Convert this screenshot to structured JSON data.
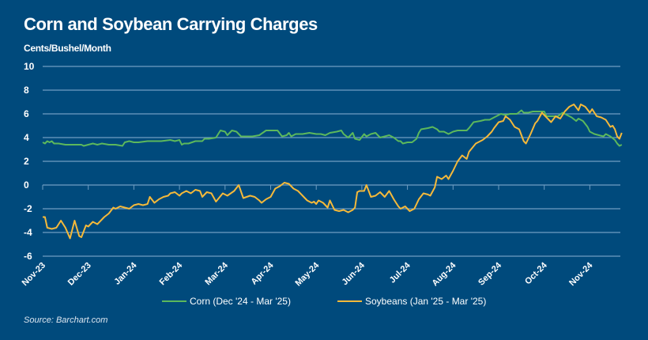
{
  "title": "Corn and Soybean Carrying Charges",
  "source": "Source: Barchart.com",
  "chart_data": {
    "type": "line",
    "title": "Corn and Soybean Carrying Charges",
    "ylabel": "Cents/Bushel/Month",
    "xlabel": "",
    "ylim": [
      -6,
      10
    ],
    "yticks": [
      10,
      8,
      6,
      4,
      2,
      0,
      -2,
      -4,
      -6
    ],
    "x_unit": "months since Nov-23",
    "xlim": [
      0,
      12.7
    ],
    "xtick_labels": [
      "Nov-23",
      "Dec-23",
      "Jan-24",
      "Feb-24",
      "Mar-24",
      "Apr-24",
      "May-24",
      "Jun-24",
      "Jul-24",
      "Aug-24",
      "Sep-24",
      "Oct-24",
      "Nov-24"
    ],
    "grid": true,
    "legend_position": "bottom",
    "series": [
      {
        "name": "Corn (Dec '24 - Mar '25)",
        "color": "#5cb85c",
        "points": [
          [
            0,
            3.6
          ],
          [
            0.05,
            3.5
          ],
          [
            0.1,
            3.7
          ],
          [
            0.15,
            3.6
          ],
          [
            0.2,
            3.7
          ],
          [
            0.25,
            3.5
          ],
          [
            0.35,
            3.5
          ],
          [
            0.5,
            3.4
          ],
          [
            0.7,
            3.4
          ],
          [
            0.85,
            3.4
          ],
          [
            0.9,
            3.3
          ],
          [
            1.0,
            3.4
          ],
          [
            1.1,
            3.5
          ],
          [
            1.2,
            3.4
          ],
          [
            1.3,
            3.5
          ],
          [
            1.45,
            3.4
          ],
          [
            1.6,
            3.4
          ],
          [
            1.75,
            3.3
          ],
          [
            1.8,
            3.6
          ],
          [
            1.9,
            3.7
          ],
          [
            2.0,
            3.6
          ],
          [
            2.1,
            3.6
          ],
          [
            2.3,
            3.7
          ],
          [
            2.45,
            3.7
          ],
          [
            2.6,
            3.7
          ],
          [
            2.8,
            3.8
          ],
          [
            2.9,
            3.7
          ],
          [
            3.0,
            3.8
          ],
          [
            3.05,
            3.4
          ],
          [
            3.1,
            3.5
          ],
          [
            3.2,
            3.5
          ],
          [
            3.35,
            3.7
          ],
          [
            3.5,
            3.7
          ],
          [
            3.55,
            3.9
          ],
          [
            3.65,
            3.9
          ],
          [
            3.8,
            4.0
          ],
          [
            3.9,
            4.6
          ],
          [
            4.0,
            4.5
          ],
          [
            4.05,
            4.2
          ],
          [
            4.15,
            4.6
          ],
          [
            4.25,
            4.5
          ],
          [
            4.35,
            4.1
          ],
          [
            4.5,
            4.1
          ],
          [
            4.6,
            4.1
          ],
          [
            4.75,
            4.2
          ],
          [
            4.9,
            4.6
          ],
          [
            5.0,
            4.6
          ],
          [
            5.15,
            4.6
          ],
          [
            5.25,
            4.1
          ],
          [
            5.35,
            4.2
          ],
          [
            5.4,
            4.4
          ],
          [
            5.45,
            4.1
          ],
          [
            5.55,
            4.3
          ],
          [
            5.7,
            4.3
          ],
          [
            5.85,
            4.4
          ],
          [
            6.0,
            4.3
          ],
          [
            6.1,
            4.3
          ],
          [
            6.2,
            4.2
          ],
          [
            6.3,
            4.4
          ],
          [
            6.45,
            4.5
          ],
          [
            6.55,
            4.6
          ],
          [
            6.6,
            4.3
          ],
          [
            6.7,
            4.0
          ],
          [
            6.8,
            4.4
          ],
          [
            6.85,
            3.9
          ],
          [
            6.95,
            3.8
          ],
          [
            7.05,
            4.3
          ],
          [
            7.1,
            4.1
          ],
          [
            7.2,
            4.3
          ],
          [
            7.3,
            4.4
          ],
          [
            7.4,
            4.0
          ],
          [
            7.5,
            4.1
          ],
          [
            7.6,
            4.2
          ],
          [
            7.7,
            4.0
          ],
          [
            7.8,
            3.7
          ],
          [
            7.85,
            3.7
          ],
          [
            7.9,
            3.5
          ],
          [
            8.0,
            3.6
          ],
          [
            8.1,
            3.6
          ],
          [
            8.2,
            3.9
          ],
          [
            8.25,
            4.4
          ],
          [
            8.3,
            4.7
          ],
          [
            8.45,
            4.8
          ],
          [
            8.55,
            4.9
          ],
          [
            8.65,
            4.7
          ],
          [
            8.7,
            4.5
          ],
          [
            8.8,
            4.5
          ],
          [
            8.9,
            4.3
          ],
          [
            9.0,
            4.5
          ],
          [
            9.1,
            4.6
          ],
          [
            9.2,
            4.6
          ],
          [
            9.3,
            4.6
          ],
          [
            9.35,
            4.8
          ],
          [
            9.45,
            5.3
          ],
          [
            9.6,
            5.4
          ],
          [
            9.7,
            5.5
          ],
          [
            9.8,
            5.5
          ],
          [
            9.9,
            5.7
          ],
          [
            10.0,
            5.9
          ],
          [
            10.05,
            6.0
          ],
          [
            10.15,
            5.9
          ],
          [
            10.25,
            6.0
          ],
          [
            10.4,
            6.0
          ],
          [
            10.5,
            6.3
          ],
          [
            10.55,
            6.1
          ],
          [
            10.65,
            6.1
          ],
          [
            10.75,
            6.2
          ],
          [
            10.85,
            6.2
          ],
          [
            11.0,
            6.2
          ],
          [
            11.05,
            5.8
          ],
          [
            11.15,
            5.8
          ],
          [
            11.3,
            5.8
          ],
          [
            11.4,
            6.1
          ],
          [
            11.5,
            5.9
          ],
          [
            11.6,
            5.7
          ],
          [
            11.7,
            5.4
          ],
          [
            11.75,
            5.6
          ],
          [
            11.85,
            5.4
          ],
          [
            11.95,
            4.9
          ],
          [
            12.0,
            4.5
          ],
          [
            12.1,
            4.3
          ],
          [
            12.2,
            4.2
          ],
          [
            12.3,
            4.1
          ],
          [
            12.35,
            4.3
          ],
          [
            12.45,
            4.1
          ],
          [
            12.55,
            3.8
          ],
          [
            12.6,
            3.5
          ],
          [
            12.65,
            3.3
          ],
          [
            12.7,
            3.4
          ]
        ]
      },
      {
        "name": "Soybeans (Jan '25 - Mar '25)",
        "color": "#f5b93a",
        "points": [
          [
            0,
            -2.7
          ],
          [
            0.05,
            -2.7
          ],
          [
            0.1,
            -3.6
          ],
          [
            0.2,
            -3.7
          ],
          [
            0.3,
            -3.6
          ],
          [
            0.4,
            -3.0
          ],
          [
            0.5,
            -3.6
          ],
          [
            0.6,
            -4.5
          ],
          [
            0.7,
            -3.0
          ],
          [
            0.8,
            -4.3
          ],
          [
            0.85,
            -4.4
          ],
          [
            0.95,
            -3.4
          ],
          [
            1.0,
            -3.5
          ],
          [
            1.1,
            -3.1
          ],
          [
            1.2,
            -3.3
          ],
          [
            1.3,
            -2.9
          ],
          [
            1.35,
            -2.7
          ],
          [
            1.45,
            -2.4
          ],
          [
            1.55,
            -1.9
          ],
          [
            1.6,
            -2.0
          ],
          [
            1.7,
            -1.8
          ],
          [
            1.8,
            -1.9
          ],
          [
            1.9,
            -2.0
          ],
          [
            2.0,
            -1.7
          ],
          [
            2.1,
            -1.6
          ],
          [
            2.2,
            -1.7
          ],
          [
            2.3,
            -1.6
          ],
          [
            2.35,
            -1.0
          ],
          [
            2.45,
            -1.5
          ],
          [
            2.55,
            -1.2
          ],
          [
            2.65,
            -1.0
          ],
          [
            2.75,
            -0.9
          ],
          [
            2.8,
            -0.7
          ],
          [
            2.9,
            -0.6
          ],
          [
            3.0,
            -0.9
          ],
          [
            3.05,
            -0.7
          ],
          [
            3.15,
            -0.5
          ],
          [
            3.25,
            -0.7
          ],
          [
            3.35,
            -0.4
          ],
          [
            3.45,
            -0.5
          ],
          [
            3.5,
            -1.0
          ],
          [
            3.6,
            -0.6
          ],
          [
            3.7,
            -0.7
          ],
          [
            3.8,
            -1.4
          ],
          [
            3.95,
            -0.7
          ],
          [
            4.05,
            -0.9
          ],
          [
            4.2,
            -0.5
          ],
          [
            4.3,
            0
          ],
          [
            4.4,
            -1.1
          ],
          [
            4.55,
            -0.9
          ],
          [
            4.65,
            -1.0
          ],
          [
            4.75,
            -1.3
          ],
          [
            4.8,
            -1.5
          ],
          [
            4.9,
            -1.2
          ],
          [
            5.0,
            -1.0
          ],
          [
            5.1,
            -0.3
          ],
          [
            5.2,
            -0.1
          ],
          [
            5.3,
            0.2
          ],
          [
            5.4,
            0.1
          ],
          [
            5.5,
            -0.3
          ],
          [
            5.6,
            -0.5
          ],
          [
            5.7,
            -0.9
          ],
          [
            5.8,
            -1.3
          ],
          [
            5.9,
            -1.5
          ],
          [
            5.95,
            -1.4
          ],
          [
            6.0,
            -1.6
          ],
          [
            6.05,
            -1.3
          ],
          [
            6.15,
            -1.5
          ],
          [
            6.25,
            -1.9
          ],
          [
            6.3,
            -1.3
          ],
          [
            6.4,
            -2.1
          ],
          [
            6.5,
            -2.2
          ],
          [
            6.6,
            -2.1
          ],
          [
            6.7,
            -2.3
          ],
          [
            6.8,
            -2.1
          ],
          [
            6.85,
            -1.9
          ],
          [
            6.9,
            -0.6
          ],
          [
            6.95,
            -0.5
          ],
          [
            7.05,
            -0.5
          ],
          [
            7.1,
            0
          ],
          [
            7.2,
            -1.0
          ],
          [
            7.3,
            -0.9
          ],
          [
            7.4,
            -0.6
          ],
          [
            7.5,
            -1.0
          ],
          [
            7.6,
            -0.5
          ],
          [
            7.7,
            -1.2
          ],
          [
            7.8,
            -1.8
          ],
          [
            7.85,
            -2.0
          ],
          [
            7.95,
            -1.8
          ],
          [
            8.05,
            -2.2
          ],
          [
            8.15,
            -2.0
          ],
          [
            8.25,
            -1.2
          ],
          [
            8.35,
            -0.7
          ],
          [
            8.45,
            -0.8
          ],
          [
            8.5,
            -0.9
          ],
          [
            8.6,
            -0.2
          ],
          [
            8.65,
            0.7
          ],
          [
            8.75,
            0.5
          ],
          [
            8.85,
            0.8
          ],
          [
            8.9,
            0.5
          ],
          [
            9.0,
            1.2
          ],
          [
            9.1,
            2.0
          ],
          [
            9.2,
            2.5
          ],
          [
            9.3,
            2.2
          ],
          [
            9.35,
            2.8
          ],
          [
            9.5,
            3.5
          ],
          [
            9.65,
            3.8
          ],
          [
            9.75,
            4.1
          ],
          [
            9.85,
            4.5
          ],
          [
            9.9,
            4.8
          ],
          [
            10.0,
            5.3
          ],
          [
            10.1,
            5.4
          ],
          [
            10.15,
            5.8
          ],
          [
            10.25,
            5.5
          ],
          [
            10.35,
            4.9
          ],
          [
            10.45,
            4.7
          ],
          [
            10.55,
            3.7
          ],
          [
            10.6,
            3.5
          ],
          [
            10.7,
            4.3
          ],
          [
            10.8,
            5.2
          ],
          [
            10.85,
            5.4
          ],
          [
            10.95,
            6.1
          ],
          [
            11.05,
            5.7
          ],
          [
            11.15,
            5.3
          ],
          [
            11.25,
            5.8
          ],
          [
            11.35,
            5.6
          ],
          [
            11.45,
            6.2
          ],
          [
            11.55,
            6.6
          ],
          [
            11.65,
            6.8
          ],
          [
            11.75,
            6.3
          ],
          [
            11.8,
            6.8
          ],
          [
            11.9,
            6.6
          ],
          [
            12.0,
            6.1
          ],
          [
            12.05,
            6.4
          ],
          [
            12.15,
            5.8
          ],
          [
            12.25,
            5.7
          ],
          [
            12.35,
            5.5
          ],
          [
            12.45,
            4.9
          ],
          [
            12.5,
            5.0
          ],
          [
            12.55,
            4.7
          ],
          [
            12.6,
            4.1
          ],
          [
            12.65,
            3.9
          ],
          [
            12.7,
            4.4
          ]
        ]
      }
    ]
  }
}
